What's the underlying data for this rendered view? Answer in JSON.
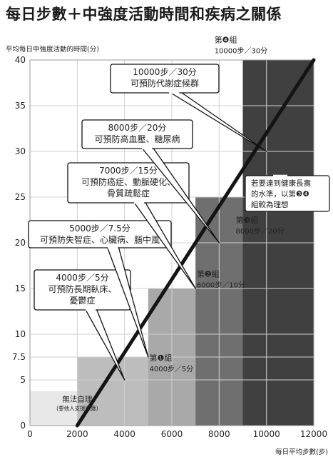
{
  "chart_data": {
    "type": "area",
    "title": "每日步數＋中強度活動時間和疾病之關係",
    "ylabel": "平均每日中強度活動的時間(分)",
    "xlabel": "每日平均步數(步)",
    "xlim": [
      0,
      12000
    ],
    "ylim": [
      0,
      40
    ],
    "xticks": [
      "0",
      "2000",
      "4000",
      "6000",
      "8000",
      "10000",
      "12000"
    ],
    "yticks": [
      "0",
      "5",
      "7.5",
      "10",
      "15",
      "20",
      "25",
      "30",
      "35",
      "40"
    ],
    "ytick_values": [
      0,
      5,
      7.5,
      10,
      15,
      20,
      25,
      30,
      35,
      40
    ],
    "grid": true,
    "colors": {
      "none": "#e8e8e8",
      "g1": "#bdbdbd",
      "g2": "#a9a9a9",
      "g3": "#6f6f6f",
      "g4": "#404040",
      "line": "#141414"
    },
    "line": {
      "x": [
        2000,
        12000
      ],
      "y": [
        0,
        40
      ]
    },
    "zones": [
      {
        "key": "none",
        "x": [
          0,
          5000
        ],
        "y": [
          0,
          3.75
        ]
      },
      {
        "key": "g1",
        "x": [
          2000,
          5000
        ],
        "y": [
          0,
          7.5
        ]
      },
      {
        "key": "g2",
        "x": [
          5000,
          7000
        ],
        "y": [
          0,
          15
        ]
      },
      {
        "key": "g3",
        "x": [
          7000,
          9000
        ],
        "y": [
          0,
          25
        ]
      },
      {
        "key": "g4",
        "x": [
          9000,
          12000
        ],
        "y": [
          0,
          40
        ]
      }
    ],
    "groups": [
      {
        "name": "第❶組",
        "desc": "4000步／5分"
      },
      {
        "name": "第❷組",
        "desc": "6000步／10分"
      },
      {
        "name": "第❸組",
        "desc": "8000步／20分"
      },
      {
        "name": "第❹組",
        "desc": "10000步／30分"
      }
    ],
    "no_self_care": {
      "label": "無法自理",
      "note": "(要他人支援照護)"
    },
    "annotations": [
      {
        "line1": "4000步／5分",
        "line2": "可預防長期臥床、",
        "line3": "憂鬱症",
        "point": [
          4000,
          5
        ]
      },
      {
        "line1": "5000步／7.5分",
        "line2": "可預防失智症、心臟病、腦中風",
        "line3": "",
        "point": [
          5000,
          7.5
        ]
      },
      {
        "line1": "7000步／15分",
        "line2": "可預防癌症、動脈硬化、",
        "line3": "骨質疏鬆症",
        "point": [
          7000,
          15
        ]
      },
      {
        "line1": "8000步／20分",
        "line2": "可預防高血壓、糖尿病",
        "line3": "",
        "point": [
          8000,
          20
        ]
      },
      {
        "line1": "10000步／30分",
        "line2": "可預防代謝症候群",
        "line3": "",
        "point": [
          10000,
          30
        ]
      }
    ],
    "ideal_note": {
      "line1": "若要達到健康長壽",
      "line2": "的水準，以第❸❹",
      "line3": "組較為理想",
      "point": [
        8000,
        20
      ]
    }
  }
}
